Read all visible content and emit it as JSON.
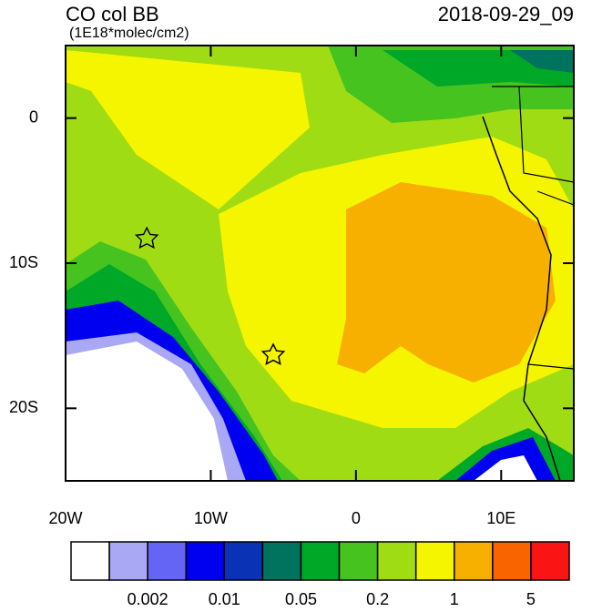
{
  "header": {
    "title": "CO col BB",
    "units": "(1E18*molec/cm2)",
    "date": "2018-09-29_09"
  },
  "map": {
    "lon_range": [
      -20,
      15
    ],
    "lat_range": [
      -25,
      5
    ],
    "lon_ticks": [
      {
        "value": -20,
        "label": "20W"
      },
      {
        "value": -10,
        "label": "10W"
      },
      {
        "value": 0,
        "label": "0"
      },
      {
        "value": 10,
        "label": "10E"
      }
    ],
    "lat_ticks": [
      {
        "value": 0,
        "label": "0"
      },
      {
        "value": -10,
        "label": "10S"
      },
      {
        "value": -20,
        "label": "20S"
      }
    ]
  },
  "colorbar": {
    "colors": [
      "#ffffff",
      "#a8a8f5",
      "#6464f5",
      "#0000f0",
      "#0a32b4",
      "#00735f",
      "#00a828",
      "#46c31e",
      "#a0dc14",
      "#f5f500",
      "#f8b000",
      "#fa6400",
      "#fa1414"
    ],
    "labels": [
      "0.002",
      "0.01",
      "0.05",
      "0.2",
      "1",
      "5"
    ]
  }
}
